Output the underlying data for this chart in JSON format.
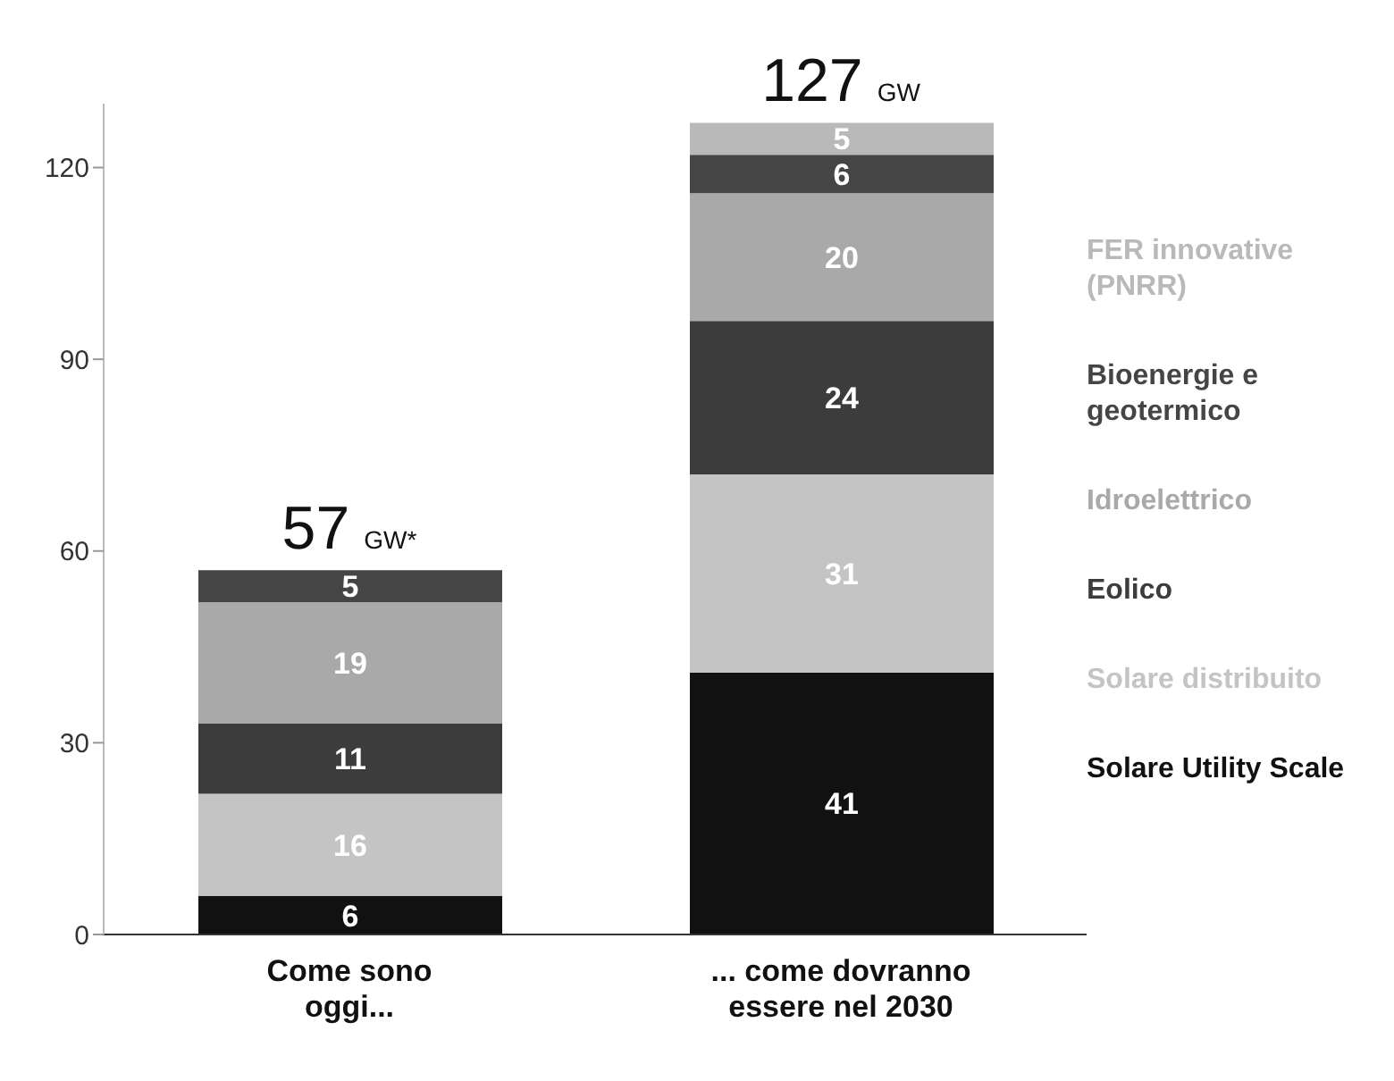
{
  "chart_data": {
    "type": "bar",
    "stacked": true,
    "categories": [
      "Come sono oggi...",
      "... come dovranno essere nel 2030"
    ],
    "series": [
      {
        "name": "Solare Utility Scale",
        "color": "#111111",
        "values": [
          6,
          41
        ]
      },
      {
        "name": "Solare distribuito",
        "color": "#c4c4c4",
        "values": [
          16,
          31
        ]
      },
      {
        "name": "Eolico",
        "color": "#3c3c3c",
        "values": [
          11,
          24
        ]
      },
      {
        "name": "Idroelettrico",
        "color": "#a9a9a9",
        "values": [
          19,
          20
        ]
      },
      {
        "name": "Bioenergie e geotermico",
        "color": "#454545",
        "values": [
          5,
          6
        ]
      },
      {
        "name": "FER innovative (PNRR)",
        "color": "#b9b9b9",
        "values": [
          null,
          5
        ]
      }
    ],
    "ylim": [
      0,
      130
    ],
    "yticks": [
      0,
      30,
      60,
      90,
      120
    ],
    "grid": false,
    "legend": "right",
    "data_labels": true,
    "totals": [
      "57 GW*",
      "127 GW"
    ]
  }
}
